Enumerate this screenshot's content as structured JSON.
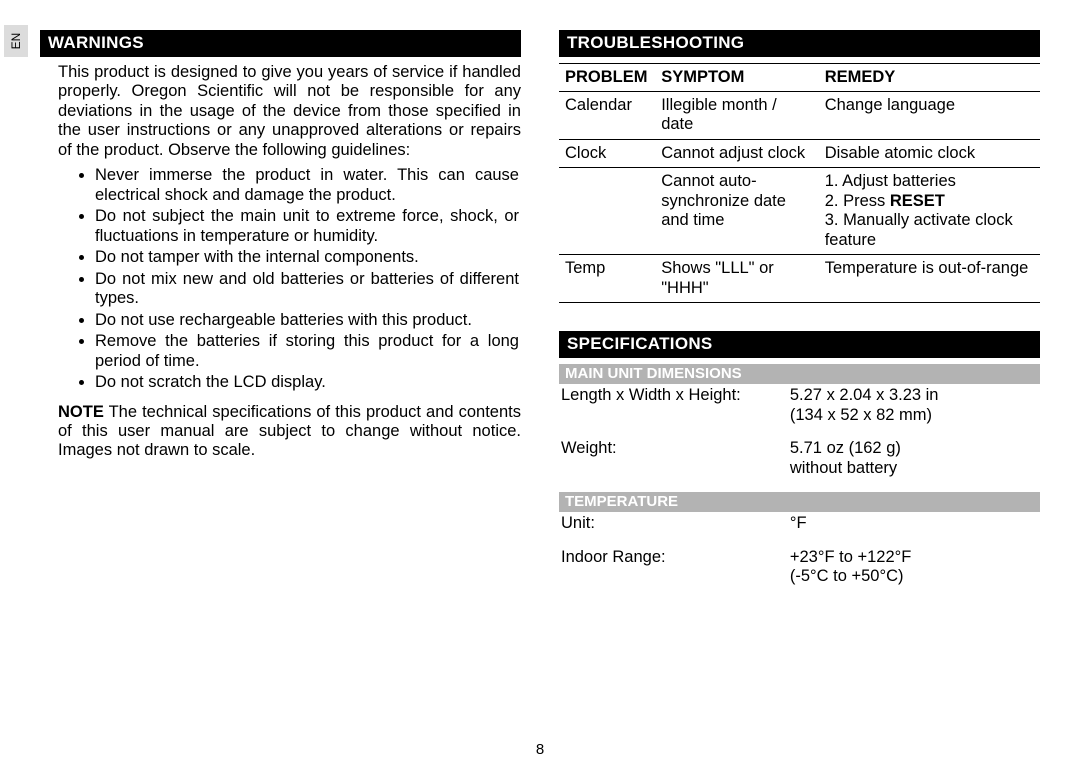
{
  "lang": "EN",
  "pageNumber": "8",
  "left": {
    "heading": "WARNINGS",
    "intro": "This product is designed to give you years of service if handled properly. Oregon Scientific will not be responsible for any deviations in the usage of the device from those specified in the user instructions or any unapproved alterations or repairs of the product. Observe the following guidelines:",
    "bullets": [
      "Never immerse the product in water. This can cause electrical shock and damage the product.",
      "Do not subject the main unit to extreme force, shock, or fluctuations in temperature or humidity.",
      "Do not tamper with the internal components.",
      "Do not mix new and old batteries or batteries of different types.",
      "Do not use rechargeable batteries with this product.",
      "Remove the batteries if storing this product for a long period of time.",
      "Do not scratch the LCD display."
    ],
    "note_label": "NOTE",
    "note_text": " The technical specifications of this product and contents of this user manual are subject to change without notice. Images not drawn to scale."
  },
  "right": {
    "troubleshooting": {
      "heading": "TROUBLESHOOTING",
      "head": {
        "c1": "PROBLEM",
        "c2": "SYMPTOM",
        "c3": "REMEDY"
      },
      "rows": [
        {
          "c1": "Calendar",
          "c2": "Illegible month / date",
          "c3": "Change language"
        },
        {
          "c1": "Clock",
          "c2": "Cannot adjust clock",
          "c3": "Disable atomic clock"
        },
        {
          "c1": "",
          "c2": "Cannot auto-synchronize date and time",
          "c3_pre": "1. Adjust batteries\n2. Press ",
          "c3_bold": "RESET",
          "c3_post": "\n3. Manually activate clock feature"
        },
        {
          "c1": "Temp",
          "c2": "Shows \"LLL\" or \"HHH\"",
          "c3": "Temperature is out-of-range"
        }
      ]
    },
    "specs": {
      "heading": "SPECIFICATIONS",
      "sections": [
        {
          "title": "MAIN UNIT DIMENSIONS",
          "rows": [
            {
              "label": "Length x Width x Height:",
              "value": "5.27 x 2.04 x 3.23 in\n(134 x 52 x 82 mm)"
            },
            {
              "label": "Weight:",
              "value": "5.71 oz (162 g)\nwithout battery"
            }
          ]
        },
        {
          "title": "TEMPERATURE",
          "rows": [
            {
              "label": "Unit:",
              "value": "°F"
            },
            {
              "label": "Indoor Range:",
              "value": "+23°F to +122°F\n(-5°C to +50°C)"
            }
          ]
        }
      ]
    }
  }
}
